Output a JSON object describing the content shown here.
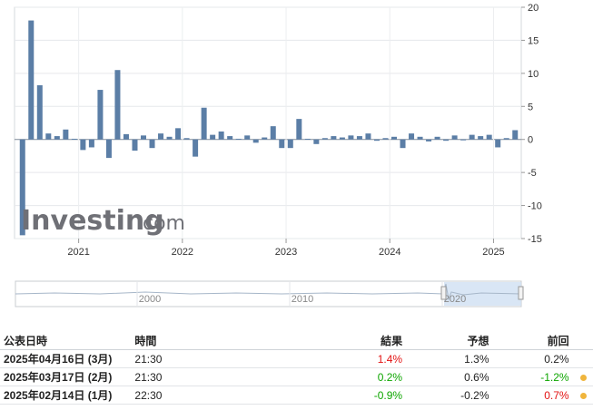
{
  "chart_data": {
    "type": "bar",
    "x": [
      "2020-06",
      "2020-07",
      "2020-08",
      "2020-09",
      "2020-10",
      "2020-11",
      "2020-12",
      "2021-01",
      "2021-02",
      "2021-03",
      "2021-04",
      "2021-05",
      "2021-06",
      "2021-07",
      "2021-08",
      "2021-09",
      "2021-10",
      "2021-11",
      "2021-12",
      "2022-01",
      "2022-02",
      "2022-03",
      "2022-04",
      "2022-05",
      "2022-06",
      "2022-07",
      "2022-08",
      "2022-09",
      "2022-10",
      "2022-11",
      "2022-12",
      "2023-01",
      "2023-02",
      "2023-03",
      "2023-04",
      "2023-05",
      "2023-06",
      "2023-07",
      "2023-08",
      "2023-09",
      "2023-10",
      "2023-11",
      "2023-12",
      "2024-01",
      "2024-02",
      "2024-03",
      "2024-04",
      "2024-05",
      "2024-06",
      "2024-07",
      "2024-08",
      "2024-09",
      "2024-10",
      "2024-11",
      "2024-12",
      "2025-01",
      "2025-02",
      "2025-03"
    ],
    "values": [
      -14.5,
      18.0,
      8.2,
      0.9,
      0.5,
      1.5,
      0.1,
      -1.6,
      -1.2,
      7.5,
      -2.8,
      10.5,
      0.8,
      -1.7,
      0.6,
      -1.3,
      0.9,
      0.4,
      1.7,
      0.2,
      -2.6,
      4.8,
      0.7,
      1.2,
      0.5,
      0.1,
      0.6,
      -0.5,
      0.3,
      2.0,
      -1.3,
      -1.3,
      3.1,
      0.1,
      -0.7,
      0.2,
      0.5,
      0.3,
      0.6,
      0.5,
      0.9,
      -0.2,
      0.2,
      0.4,
      -1.3,
      0.9,
      0.4,
      -0.3,
      0.4,
      -0.2,
      0.6,
      0.0,
      0.7,
      0.5,
      0.7,
      -1.2,
      0.2,
      1.4
    ],
    "year_ticks": [
      "2021",
      "2022",
      "2023",
      "2024",
      "2025"
    ],
    "y_ticks": [
      20,
      15,
      10,
      5,
      0,
      -5,
      -10,
      -15
    ],
    "ylim": [
      -15,
      20
    ],
    "bar_color": "#5b7ea6",
    "grid": true,
    "y_axis_side": "right",
    "watermark": "Investing.com",
    "navigator_labels": [
      "2000",
      "2010",
      "2020"
    ]
  },
  "table": {
    "headers": {
      "date": "公表日時",
      "time": "時間",
      "actual": "結果",
      "forecast": "予想",
      "previous": "前回"
    },
    "rows": [
      {
        "date": "2025年04月16日 (3月)",
        "time": "21:30",
        "actual": "1.4%",
        "actual_color": "#e31313",
        "forecast": "1.3%",
        "previous": "0.2%",
        "previous_color": "#222222",
        "dot": false
      },
      {
        "date": "2025年03月17日 (2月)",
        "time": "21:30",
        "actual": "0.2%",
        "actual_color": "#0ea600",
        "forecast": "0.6%",
        "previous": "-1.2%",
        "previous_color": "#0ea600",
        "dot": true
      },
      {
        "date": "2025年02月14日 (1月)",
        "time": "22:30",
        "actual": "-0.9%",
        "actual_color": "#0ea600",
        "forecast": "-0.2%",
        "previous": "0.7%",
        "previous_color": "#e31313",
        "dot": true
      }
    ]
  }
}
